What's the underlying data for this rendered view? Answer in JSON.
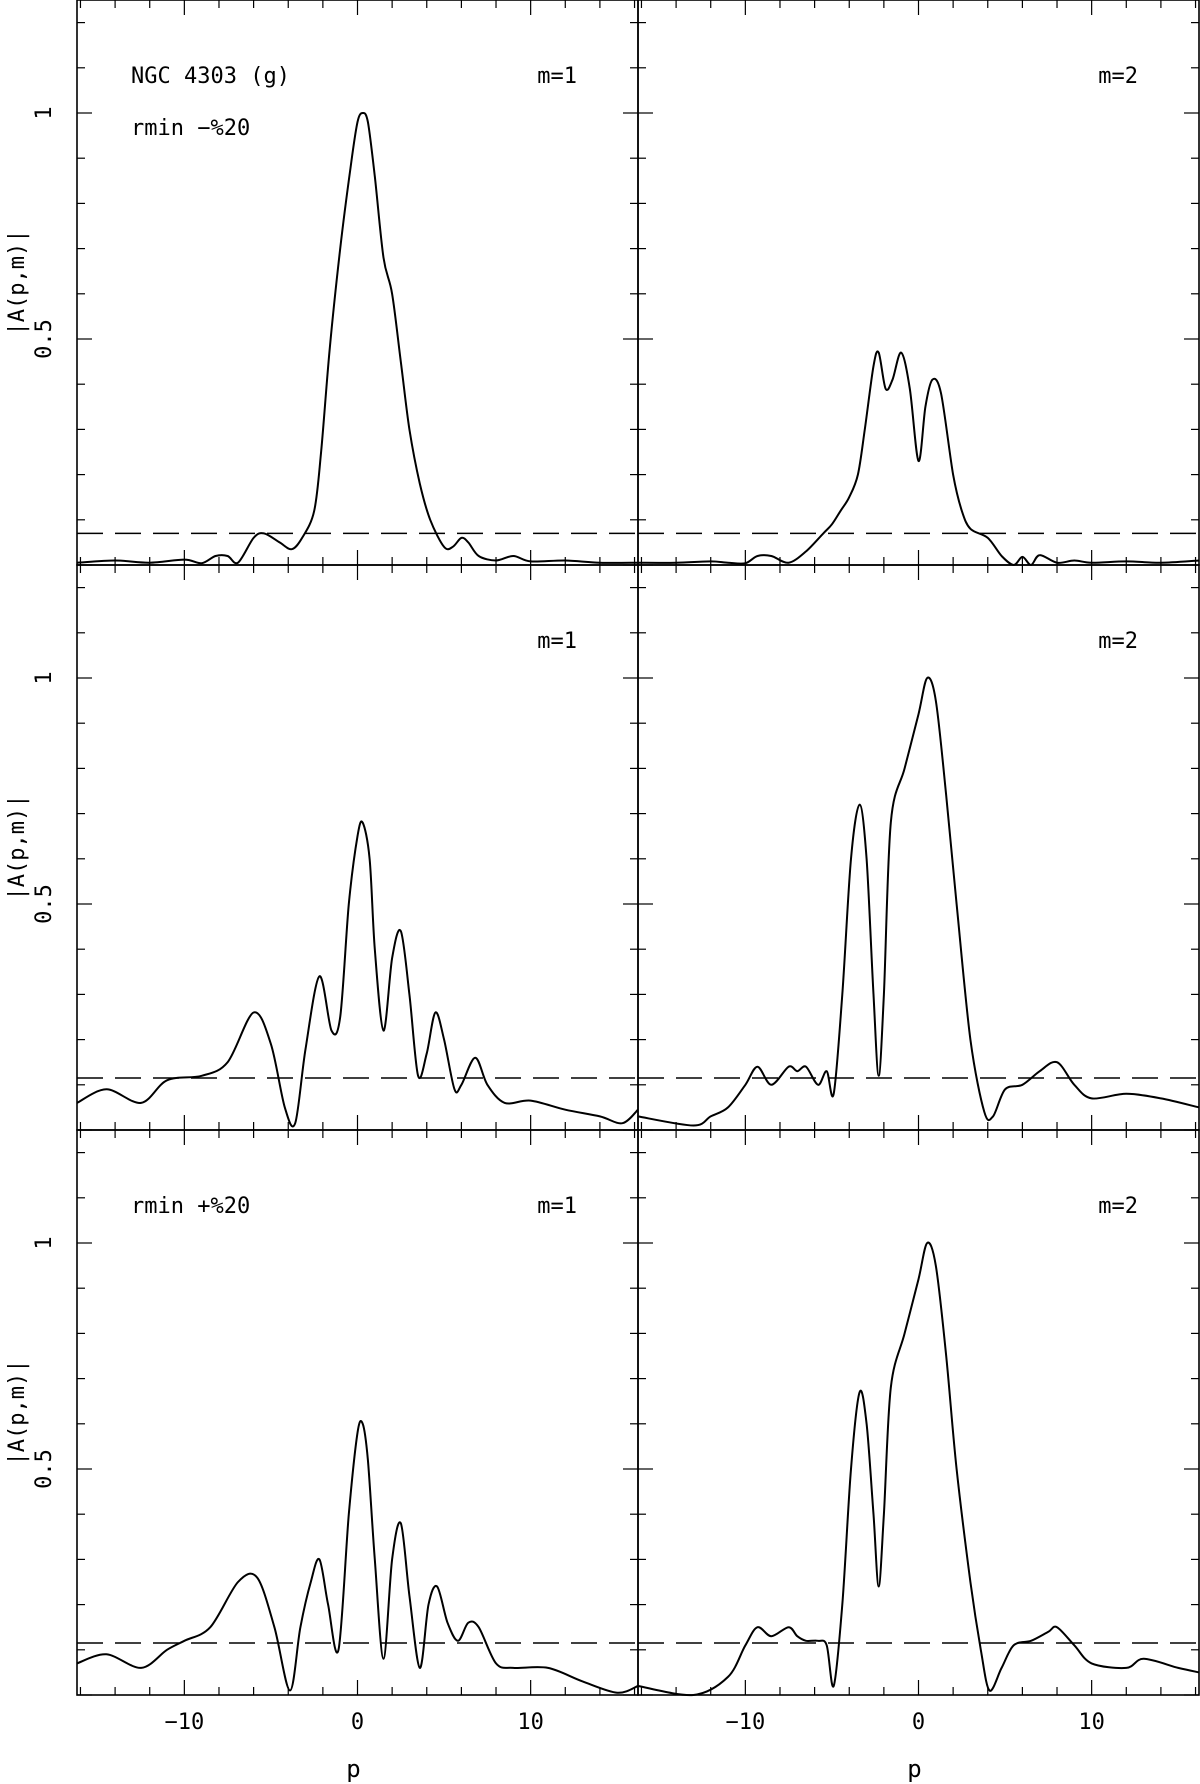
{
  "chart_data": {
    "type": "line",
    "xlabel": "p",
    "ylabel": "|A(p,m)|",
    "xlim": [
      -16.2,
      16.2
    ],
    "ylim": [
      0,
      1.25
    ],
    "x_ticks": [
      -10,
      0,
      10
    ],
    "x_tick_labels": [
      "−10",
      "0",
      "10"
    ],
    "y_ticks": [
      0.5,
      1
    ],
    "y_tick_labels": [
      "0.5",
      "1"
    ],
    "grid": false,
    "panels": [
      {
        "id": "top-left",
        "m_label": "m=1",
        "annotations": [
          "NGC 4303 (g)",
          "rmin −%20"
        ],
        "threshold": 0.07,
        "x": [
          -16.2,
          -14,
          -12,
          -10,
          -9,
          -8.2,
          -7.5,
          -6.9,
          -6,
          -5.4,
          -4.5,
          -3.8,
          -3.2,
          -2.5,
          -2.1,
          -1.6,
          -1,
          -0.4,
          0,
          0.3,
          0.6,
          1,
          1.5,
          2,
          2.5,
          3,
          3.6,
          4.2,
          5,
          5.5,
          6,
          6.4,
          7,
          8,
          9,
          10,
          12,
          14,
          16.2
        ],
        "y": [
          0.005,
          0.01,
          0.005,
          0.012,
          0.004,
          0.02,
          0.02,
          0.005,
          0.06,
          0.07,
          0.05,
          0.035,
          0.06,
          0.12,
          0.25,
          0.48,
          0.7,
          0.88,
          0.98,
          1.0,
          0.98,
          0.86,
          0.68,
          0.6,
          0.45,
          0.3,
          0.18,
          0.1,
          0.04,
          0.04,
          0.06,
          0.05,
          0.02,
          0.01,
          0.02,
          0.008,
          0.01,
          0.005,
          0.005
        ]
      },
      {
        "id": "top-right",
        "m_label": "m=2",
        "annotations": [],
        "threshold": 0.07,
        "x": [
          -16.2,
          -14,
          -12,
          -11,
          -10,
          -9.3,
          -8.5,
          -7.5,
          -6.5,
          -5.5,
          -5,
          -4.5,
          -4,
          -3.5,
          -3.1,
          -2.6,
          -2.3,
          -1.9,
          -1.5,
          -1,
          -0.5,
          0,
          0.4,
          0.8,
          1.3,
          2,
          2.5,
          3,
          4,
          4.8,
          5.5,
          6,
          6.5,
          7,
          8,
          9,
          10,
          12,
          14,
          16.2
        ],
        "y": [
          0.005,
          0.005,
          0.008,
          0.005,
          0.004,
          0.02,
          0.02,
          0.005,
          0.03,
          0.07,
          0.09,
          0.12,
          0.15,
          0.2,
          0.3,
          0.44,
          0.47,
          0.39,
          0.41,
          0.47,
          0.39,
          0.23,
          0.35,
          0.41,
          0.38,
          0.2,
          0.12,
          0.08,
          0.06,
          0.02,
          0.0,
          0.018,
          0.0,
          0.022,
          0.005,
          0.01,
          0.005,
          0.008,
          0.005,
          0.01
        ]
      },
      {
        "id": "middle-left",
        "m_label": "m=1",
        "annotations": [],
        "threshold": 0.115,
        "x": [
          -16.2,
          -14.5,
          -12.5,
          -11,
          -9,
          -7.5,
          -6,
          -5,
          -4.2,
          -3.6,
          -3,
          -2.2,
          -1.5,
          -1,
          -0.5,
          0,
          0.3,
          0.7,
          1,
          1.5,
          2,
          2.5,
          3,
          3.5,
          4,
          4.5,
          5,
          5.6,
          6,
          6.8,
          7.5,
          8.5,
          10,
          12,
          14,
          15.3,
          16.2
        ],
        "y": [
          0.06,
          0.09,
          0.06,
          0.11,
          0.12,
          0.15,
          0.26,
          0.19,
          0.05,
          0.015,
          0.18,
          0.34,
          0.22,
          0.25,
          0.5,
          0.65,
          0.68,
          0.6,
          0.4,
          0.22,
          0.38,
          0.44,
          0.3,
          0.12,
          0.17,
          0.26,
          0.2,
          0.09,
          0.1,
          0.16,
          0.1,
          0.06,
          0.065,
          0.045,
          0.03,
          0.015,
          0.045
        ]
      },
      {
        "id": "middle-right",
        "m_label": "m=2",
        "annotations": [],
        "threshold": 0.115,
        "x": [
          -16.2,
          -13,
          -12,
          -11,
          -10,
          -9.3,
          -8.5,
          -7.5,
          -7,
          -6.5,
          -5.8,
          -5.3,
          -4.9,
          -4.4,
          -3.9,
          -3.4,
          -3,
          -2.6,
          -2.3,
          -2,
          -1.6,
          -0.8,
          0,
          0.5,
          1,
          1.6,
          2.2,
          3,
          3.8,
          4.3,
          5,
          6,
          7,
          8,
          9,
          10,
          12,
          14,
          16.2
        ],
        "y": [
          0.03,
          0.01,
          0.03,
          0.05,
          0.1,
          0.14,
          0.1,
          0.14,
          0.13,
          0.14,
          0.1,
          0.13,
          0.08,
          0.3,
          0.6,
          0.72,
          0.6,
          0.3,
          0.12,
          0.3,
          0.68,
          0.8,
          0.92,
          1.0,
          0.95,
          0.74,
          0.5,
          0.2,
          0.04,
          0.03,
          0.09,
          0.1,
          0.13,
          0.15,
          0.1,
          0.07,
          0.08,
          0.07,
          0.05
        ]
      },
      {
        "id": "bottom-left",
        "m_label": "m=1",
        "annotations": [
          "rmin +%20"
        ],
        "threshold": 0.115,
        "x": [
          -16.2,
          -14.5,
          -12.5,
          -11,
          -10,
          -8.5,
          -6.9,
          -5.8,
          -4.8,
          -3.9,
          -3.3,
          -2.7,
          -2.2,
          -1.7,
          -1.1,
          -0.5,
          0,
          0.3,
          0.6,
          1,
          1.5,
          2,
          2.5,
          3,
          3.6,
          4.1,
          4.6,
          5.2,
          5.8,
          6.4,
          7,
          8,
          9,
          11,
          13,
          15,
          16.2
        ],
        "y": [
          0.07,
          0.09,
          0.06,
          0.1,
          0.12,
          0.15,
          0.25,
          0.26,
          0.15,
          0.01,
          0.15,
          0.25,
          0.3,
          0.2,
          0.1,
          0.4,
          0.58,
          0.6,
          0.52,
          0.3,
          0.08,
          0.3,
          0.38,
          0.22,
          0.06,
          0.2,
          0.24,
          0.16,
          0.12,
          0.16,
          0.15,
          0.07,
          0.06,
          0.06,
          0.03,
          0.005,
          0.02
        ]
      },
      {
        "id": "bottom-right",
        "m_label": "m=2",
        "annotations": [],
        "threshold": 0.115,
        "x": [
          -16.2,
          -13,
          -11,
          -10,
          -9.3,
          -8.5,
          -7.5,
          -7,
          -6.5,
          -5.8,
          -5.3,
          -4.9,
          -4.4,
          -3.9,
          -3.4,
          -3,
          -2.6,
          -2.3,
          -2,
          -1.6,
          -0.8,
          0,
          0.5,
          1,
          1.6,
          2.2,
          3,
          3.6,
          4.1,
          4.8,
          5.5,
          6.5,
          7.5,
          8,
          9,
          10,
          12,
          13,
          15,
          16.2
        ],
        "y": [
          0.02,
          0.0,
          0.04,
          0.11,
          0.15,
          0.13,
          0.15,
          0.13,
          0.12,
          0.12,
          0.11,
          0.02,
          0.2,
          0.5,
          0.67,
          0.6,
          0.4,
          0.24,
          0.4,
          0.68,
          0.8,
          0.92,
          1.0,
          0.95,
          0.75,
          0.5,
          0.25,
          0.1,
          0.01,
          0.06,
          0.11,
          0.12,
          0.14,
          0.15,
          0.11,
          0.07,
          0.06,
          0.08,
          0.06,
          0.05
        ]
      }
    ]
  }
}
